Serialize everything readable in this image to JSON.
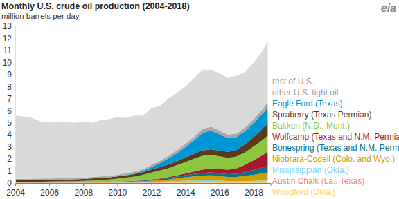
{
  "chart_data": {
    "type": "stacked_area",
    "title": "Monthly U.S. crude oil production (2004-2018)",
    "subtitle": "million barrels per day",
    "source": "eia",
    "stacked": true,
    "grid": false,
    "legend": "right",
    "x": [
      2004.0,
      2004.5,
      2005.0,
      2005.5,
      2006.0,
      2006.5,
      2007.0,
      2007.5,
      2008.0,
      2008.5,
      2009.0,
      2009.5,
      2010.0,
      2010.5,
      2011.0,
      2011.5,
      2012.0,
      2012.5,
      2013.0,
      2013.5,
      2014.0,
      2014.5,
      2015.0,
      2015.5,
      2016.0,
      2016.5,
      2017.0,
      2017.5,
      2018.0,
      2018.5,
      2018.83
    ],
    "xlim": [
      2004,
      2019
    ],
    "xticks": [
      2004,
      2006,
      2008,
      2010,
      2012,
      2014,
      2016,
      2018
    ],
    "ylim": [
      0,
      13
    ],
    "yticks": [
      0,
      1,
      2,
      3,
      4,
      5,
      6,
      7,
      8,
      9,
      10,
      11,
      12,
      13
    ],
    "series": [
      {
        "name": "Woodford (Okla.)",
        "color": "#f5d77a",
        "values": [
          0,
          0,
          0,
          0,
          0,
          0,
          0,
          0,
          0.005,
          0.01,
          0.01,
          0.01,
          0.015,
          0.02,
          0.02,
          0.025,
          0.03,
          0.035,
          0.04,
          0.045,
          0.05,
          0.055,
          0.06,
          0.06,
          0.055,
          0.05,
          0.05,
          0.06,
          0.07,
          0.08,
          0.08
        ]
      },
      {
        "name": "Austin Chalk (La., Texas)",
        "color": "#e8868a",
        "values": [
          0.03,
          0.03,
          0.03,
          0.03,
          0.03,
          0.03,
          0.03,
          0.03,
          0.03,
          0.03,
          0.03,
          0.03,
          0.03,
          0.03,
          0.03,
          0.03,
          0.035,
          0.035,
          0.035,
          0.04,
          0.04,
          0.04,
          0.04,
          0.04,
          0.035,
          0.03,
          0.03,
          0.035,
          0.04,
          0.045,
          0.05
        ]
      },
      {
        "name": "Mississippian (Okla.)",
        "color": "#7fd3f2",
        "values": [
          0.01,
          0.01,
          0.01,
          0.01,
          0.01,
          0.01,
          0.01,
          0.01,
          0.01,
          0.01,
          0.01,
          0.01,
          0.015,
          0.02,
          0.025,
          0.03,
          0.04,
          0.05,
          0.07,
          0.09,
          0.11,
          0.12,
          0.13,
          0.13,
          0.11,
          0.09,
          0.08,
          0.08,
          0.08,
          0.09,
          0.09
        ]
      },
      {
        "name": "Niobrara-Codell (Colo. and Wyo.)",
        "color": "#c9a100",
        "values": [
          0.03,
          0.03,
          0.03,
          0.03,
          0.03,
          0.03,
          0.03,
          0.03,
          0.03,
          0.03,
          0.03,
          0.03,
          0.035,
          0.04,
          0.05,
          0.07,
          0.09,
          0.12,
          0.16,
          0.22,
          0.28,
          0.34,
          0.4,
          0.42,
          0.38,
          0.34,
          0.36,
          0.42,
          0.5,
          0.58,
          0.62
        ]
      },
      {
        "name": "Bonespring (Texas and N.M. Permian)",
        "color": "#0e6f8e",
        "values": [
          0.01,
          0.01,
          0.01,
          0.01,
          0.01,
          0.01,
          0.01,
          0.01,
          0.01,
          0.01,
          0.015,
          0.02,
          0.025,
          0.03,
          0.04,
          0.06,
          0.08,
          0.1,
          0.12,
          0.15,
          0.18,
          0.2,
          0.22,
          0.24,
          0.24,
          0.24,
          0.26,
          0.32,
          0.4,
          0.5,
          0.58
        ]
      },
      {
        "name": "Wolfcamp (Texas and N.M. Permian)",
        "color": "#a6192e",
        "values": [
          0.01,
          0.01,
          0.01,
          0.01,
          0.01,
          0.01,
          0.01,
          0.01,
          0.01,
          0.01,
          0.01,
          0.01,
          0.015,
          0.02,
          0.025,
          0.03,
          0.04,
          0.05,
          0.07,
          0.1,
          0.14,
          0.2,
          0.26,
          0.32,
          0.34,
          0.36,
          0.45,
          0.6,
          0.8,
          1.0,
          1.15
        ]
      },
      {
        "name": "Bakken (N.D., Mont.)",
        "color": "#8cc63f",
        "values": [
          0.01,
          0.015,
          0.02,
          0.03,
          0.04,
          0.05,
          0.06,
          0.07,
          0.09,
          0.12,
          0.15,
          0.19,
          0.24,
          0.3,
          0.36,
          0.44,
          0.56,
          0.66,
          0.74,
          0.84,
          0.95,
          1.06,
          1.15,
          1.14,
          1.06,
          0.98,
          0.98,
          1.04,
          1.14,
          1.25,
          1.35
        ]
      },
      {
        "name": "Spraberry (Texas Permian)",
        "color": "#5b3a1a",
        "values": [
          0.14,
          0.14,
          0.14,
          0.14,
          0.14,
          0.14,
          0.15,
          0.15,
          0.16,
          0.16,
          0.17,
          0.17,
          0.18,
          0.19,
          0.2,
          0.22,
          0.25,
          0.28,
          0.31,
          0.34,
          0.38,
          0.42,
          0.45,
          0.46,
          0.47,
          0.5,
          0.56,
          0.66,
          0.78,
          0.92,
          1.05
        ]
      },
      {
        "name": "Eagle Ford (Texas)",
        "color": "#0096d6",
        "values": [
          0,
          0,
          0,
          0,
          0,
          0,
          0,
          0,
          0,
          0,
          0,
          0,
          0.005,
          0.02,
          0.05,
          0.1,
          0.2,
          0.32,
          0.5,
          0.65,
          0.85,
          1.1,
          1.45,
          1.55,
          1.35,
          1.15,
          1.05,
          1.1,
          1.15,
          1.25,
          1.3
        ]
      },
      {
        "name": "other U.S. tight oil",
        "color": "#a8a8a8",
        "values": [
          0.12,
          0.12,
          0.12,
          0.12,
          0.12,
          0.12,
          0.12,
          0.12,
          0.12,
          0.13,
          0.13,
          0.13,
          0.14,
          0.14,
          0.15,
          0.16,
          0.18,
          0.2,
          0.22,
          0.25,
          0.28,
          0.3,
          0.32,
          0.32,
          0.3,
          0.28,
          0.28,
          0.3,
          0.33,
          0.38,
          0.42
        ]
      },
      {
        "name": "rest of U.S.",
        "color": "#d9d9d9",
        "values": [
          5.24,
          5.14,
          5.03,
          4.73,
          4.62,
          4.71,
          4.68,
          4.57,
          4.64,
          4.49,
          4.65,
          4.7,
          4.8,
          4.59,
          4.65,
          4.44,
          4.7,
          4.55,
          4.74,
          4.78,
          4.74,
          4.87,
          4.92,
          4.72,
          4.76,
          4.68,
          4.8,
          4.59,
          4.71,
          4.81,
          5.01
        ]
      }
    ]
  }
}
